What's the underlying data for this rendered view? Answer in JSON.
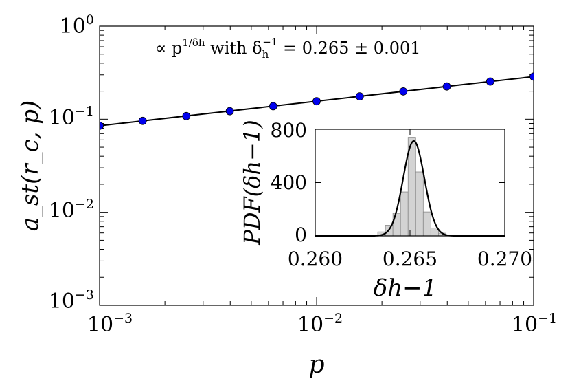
{
  "chart_data": [
    {
      "type": "scatter",
      "xscale": "log",
      "yscale": "log",
      "xlim": [
        0.001,
        0.1
      ],
      "ylim": [
        0.001,
        1
      ],
      "xlabel": "p",
      "ylabel": "a_st(r_c, p)",
      "x_ticks": [
        {
          "base": "10",
          "exp": "−3"
        },
        {
          "base": "10",
          "exp": "−2"
        },
        {
          "base": "10",
          "exp": "−1"
        }
      ],
      "y_ticks": [
        {
          "base": "10",
          "exp": "0"
        },
        {
          "base": "10",
          "exp": "−1"
        },
        {
          "base": "10",
          "exp": "−2"
        },
        {
          "base": "10",
          "exp": "−3"
        }
      ],
      "annotation": {
        "prefix": "∝ p",
        "exponent": "1/δh",
        "middle": " with δ",
        "delta_sub": "h",
        "delta_sup": "−1",
        "suffix": " = 0.265 ± 0.001"
      },
      "series": [
        {
          "marker_color": "#0000ee",
          "x": [
            0.001,
            0.00158,
            0.00251,
            0.00398,
            0.00631,
            0.01,
            0.0158,
            0.0251,
            0.0398,
            0.0631,
            0.1
          ],
          "y": [
            0.085,
            0.096,
            0.108,
            0.122,
            0.138,
            0.156,
            0.176,
            0.199,
            0.225,
            0.254,
            0.287
          ]
        }
      ],
      "fit": {
        "exponent": 0.265,
        "x": [
          0.001,
          0.1
        ],
        "y": [
          0.085,
          0.287
        ],
        "color": "#000000"
      }
    },
    {
      "type": "bar",
      "role": "inset-histogram",
      "xlim": [
        0.26,
        0.27
      ],
      "ylim": [
        0,
        800
      ],
      "xlabel": "δh−1",
      "ylabel": "PDF(δh−1)",
      "x_ticks": [
        "0.260",
        "0.265",
        "0.270"
      ],
      "y_ticks": [
        "0",
        "400",
        "800"
      ],
      "bar_color": "#d3d3d3",
      "bins": [
        {
          "x0": 0.2633,
          "x1": 0.2637,
          "value": 30
        },
        {
          "x0": 0.2637,
          "x1": 0.2641,
          "value": 80
        },
        {
          "x0": 0.2641,
          "x1": 0.2645,
          "value": 170
        },
        {
          "x0": 0.2645,
          "x1": 0.2649,
          "value": 330
        },
        {
          "x0": 0.2649,
          "x1": 0.2653,
          "value": 740
        },
        {
          "x0": 0.2653,
          "x1": 0.2657,
          "value": 480
        },
        {
          "x0": 0.2657,
          "x1": 0.2661,
          "value": 180
        },
        {
          "x0": 0.2661,
          "x1": 0.2665,
          "value": 60
        },
        {
          "x0": 0.2665,
          "x1": 0.2669,
          "value": 20
        }
      ],
      "fit_curve": {
        "type": "gaussian",
        "mean": 0.2652,
        "sigma": 0.00056,
        "peak": 712
      }
    }
  ]
}
